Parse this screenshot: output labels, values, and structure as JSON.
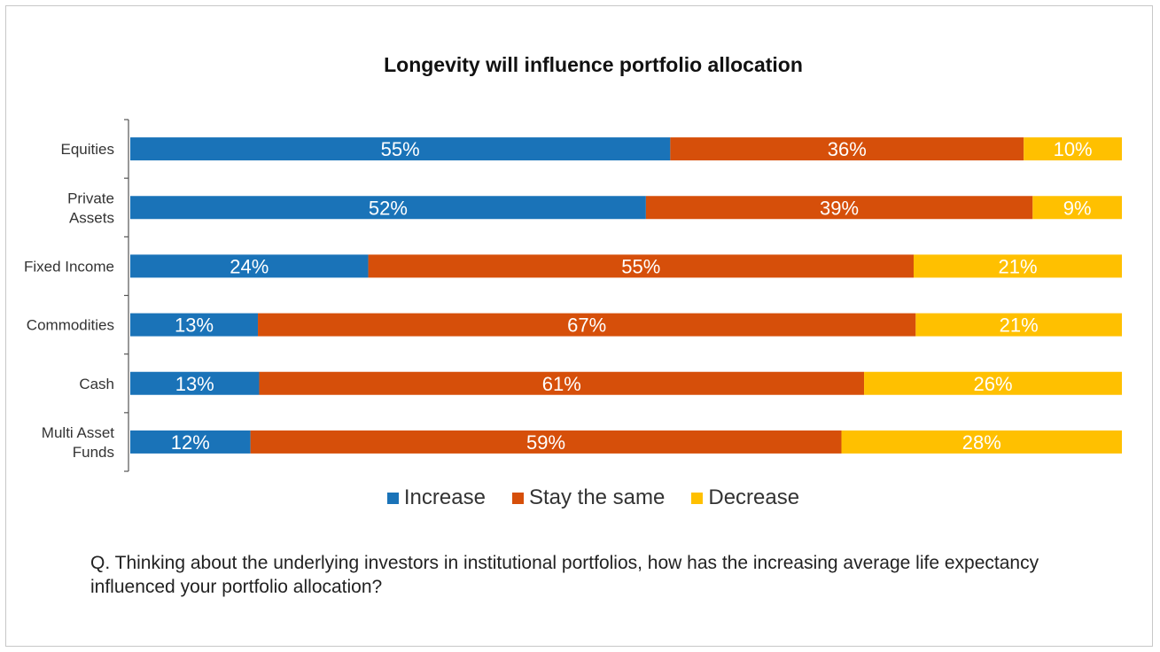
{
  "chart_data": {
    "type": "bar",
    "orientation": "horizontal",
    "stacked": true,
    "title": "Longevity will influence portfolio allocation",
    "categories": [
      "Equities",
      "Private Assets",
      "Fixed Income",
      "Commodities",
      "Cash",
      "Multi Asset Funds"
    ],
    "category_lines": [
      [
        "Equities"
      ],
      [
        "Private",
        "Assets"
      ],
      [
        "Fixed Income"
      ],
      [
        "Commodities"
      ],
      [
        "Cash"
      ],
      [
        "Multi Asset",
        "Funds"
      ]
    ],
    "series": [
      {
        "name": "Increase",
        "color": "#1a73b8",
        "values": [
          55,
          52,
          24,
          13,
          13,
          12
        ],
        "labels": [
          "55%",
          "52%",
          "24%",
          "13%",
          "13%",
          "12%"
        ]
      },
      {
        "name": "Stay the same",
        "color": "#d64f0a",
        "values": [
          36,
          39,
          55,
          67,
          61,
          59
        ],
        "labels": [
          "36%",
          "39%",
          "55%",
          "67%",
          "61%",
          "59%"
        ]
      },
      {
        "name": "Decrease",
        "color": "#ffc000",
        "values": [
          10,
          9,
          21,
          21,
          26,
          28
        ],
        "labels": [
          "10%",
          "9%",
          "21%",
          "21%",
          "26%",
          "28%"
        ]
      }
    ],
    "legend_position": "bottom",
    "grid": false
  },
  "legend": {
    "increase": "Increase",
    "stay": "Stay the same",
    "decrease": "Decrease"
  },
  "question": "Q. Thinking about the underlying investors in institutional portfolios, how has the increasing average life expectancy influenced your portfolio allocation?"
}
